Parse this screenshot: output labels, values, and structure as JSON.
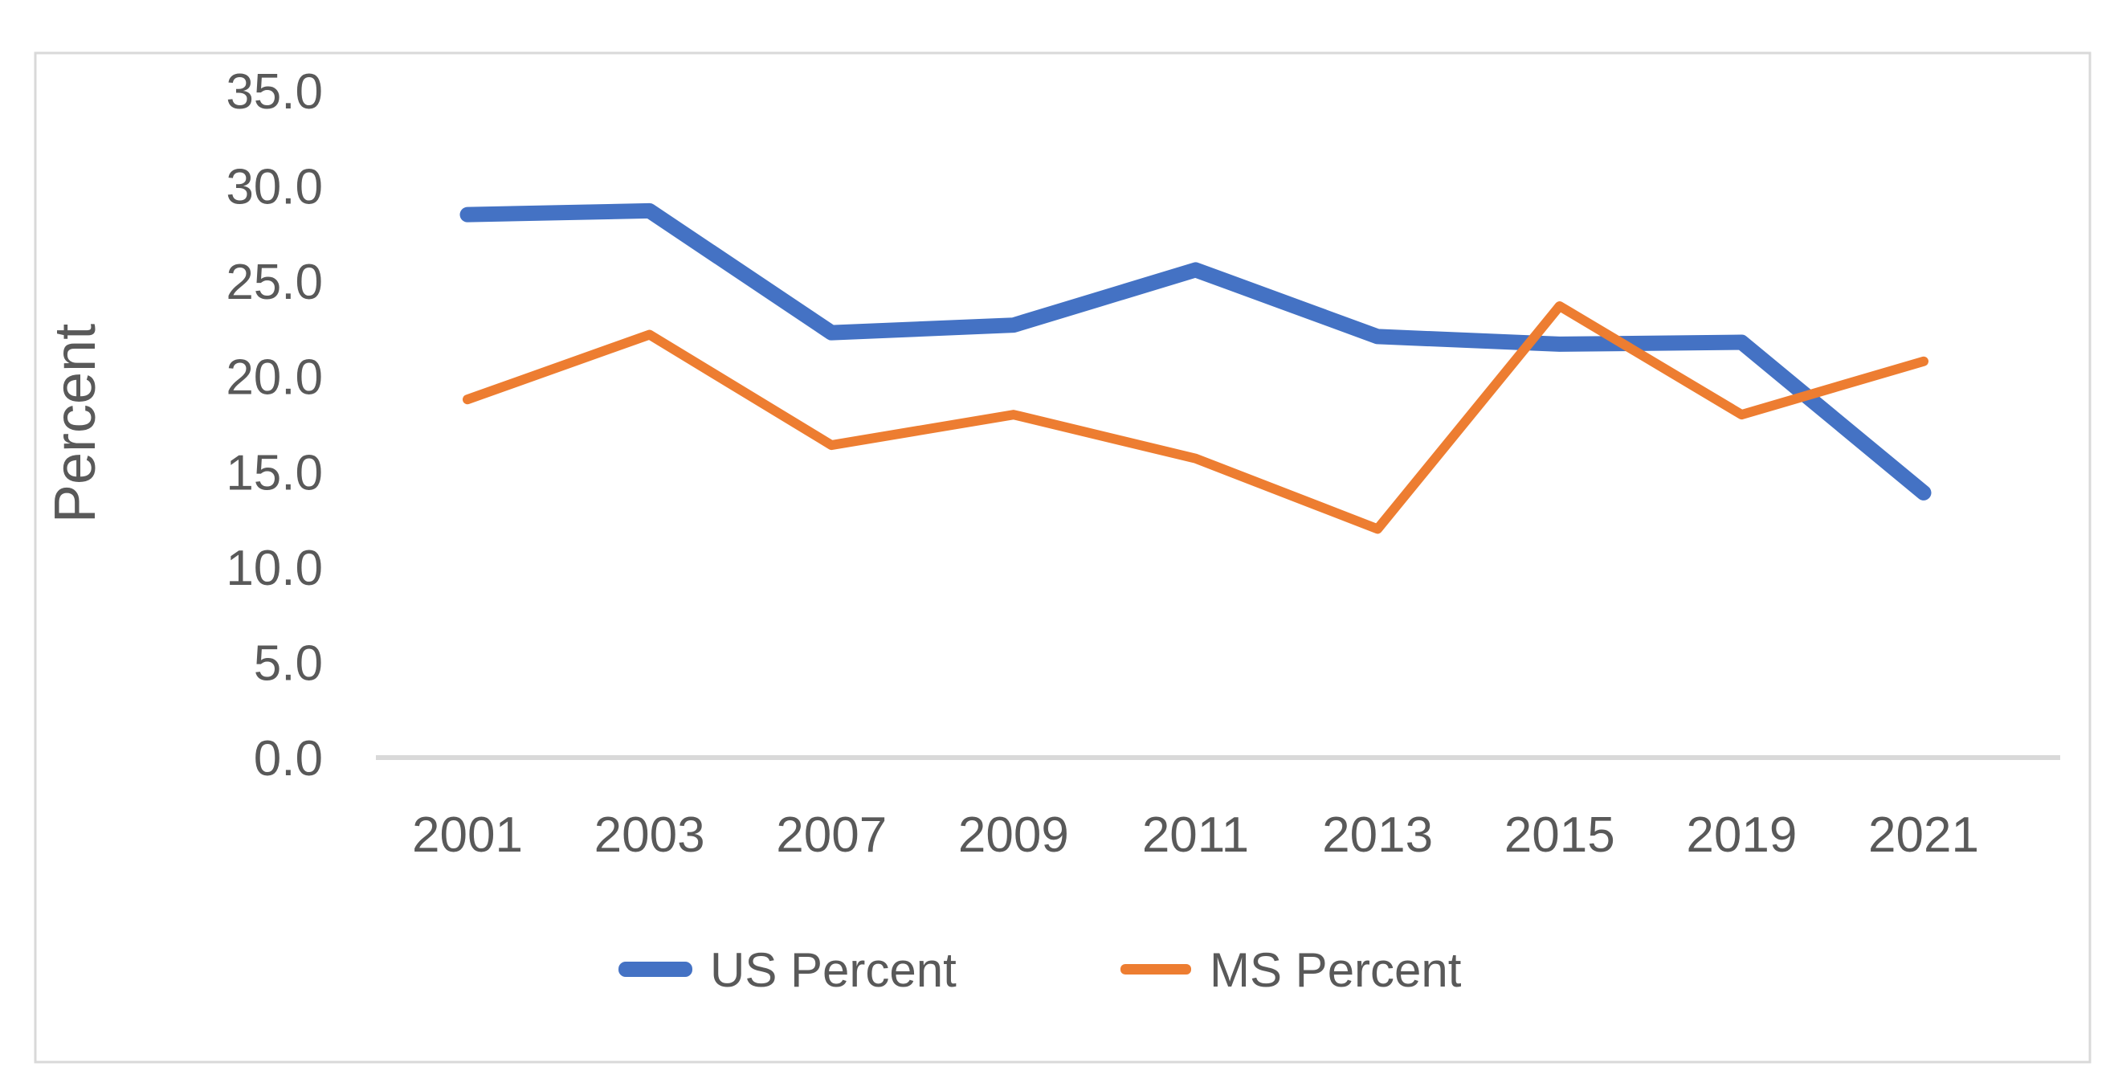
{
  "chart_data": {
    "type": "line",
    "title": "",
    "xlabel": "",
    "ylabel": "Percent",
    "categories": [
      "2001",
      "2003",
      "2007",
      "2009",
      "2011",
      "2013",
      "2015",
      "2019",
      "2021"
    ],
    "series": [
      {
        "name": "US Percent",
        "color": "#4472C4",
        "stroke_width": 19,
        "values": [
          28.5,
          28.7,
          22.3,
          22.7,
          25.6,
          22.1,
          21.7,
          21.8,
          13.9
        ]
      },
      {
        "name": "MS Percent",
        "color": "#ED7D31",
        "stroke_width": 12,
        "values": [
          18.8,
          22.2,
          16.4,
          18.0,
          15.7,
          12.0,
          23.7,
          18.0,
          20.8
        ]
      }
    ],
    "y_ticks": [
      "0.0",
      "5.0",
      "10.0",
      "15.0",
      "20.0",
      "25.0",
      "30.0",
      "35.0"
    ],
    "y_tick_step": 5,
    "ylim": [
      0,
      35
    ],
    "grid": false,
    "legend_position": "bottom",
    "colors": {
      "axis_text": "#595959",
      "axis_line": "#D9D9D9",
      "frame_border": "#D9D9D9",
      "background": "#FFFFFF"
    }
  }
}
